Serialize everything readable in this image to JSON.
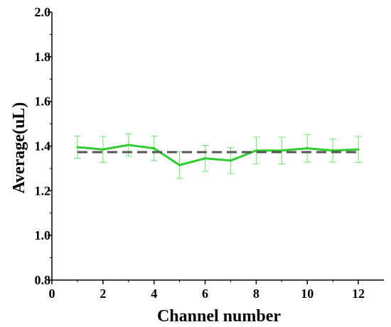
{
  "chart_data": {
    "type": "line",
    "xlabel": "Channel number",
    "ylabel": "Average(uL)",
    "xlim": [
      0,
      13
    ],
    "ylim": [
      0.8,
      2.0
    ],
    "x_ticks": [
      "0",
      "2",
      "4",
      "6",
      "8",
      "10",
      "12"
    ],
    "y_ticks": [
      "0.8",
      "1.0",
      "1.2",
      "1.4",
      "1.6",
      "1.8",
      "2.0"
    ],
    "grid": false,
    "legend": "none",
    "series": [
      {
        "style": "solid",
        "color": "#2ecc2e",
        "error_color": "#6ee36e",
        "x": [
          1,
          2,
          3,
          4,
          5,
          6,
          7,
          8,
          9,
          10,
          11,
          12
        ],
        "values": [
          1.395,
          1.385,
          1.405,
          1.39,
          1.315,
          1.345,
          1.335,
          1.38,
          1.38,
          1.39,
          1.38,
          1.385
        ],
        "errors": [
          0.05,
          0.058,
          0.05,
          0.055,
          0.06,
          0.058,
          0.058,
          0.06,
          0.06,
          0.062,
          0.052,
          0.058
        ]
      },
      {
        "style": "dashed",
        "color": "#555555",
        "x": [
          1,
          12
        ],
        "values": [
          1.373,
          1.373
        ]
      }
    ]
  }
}
